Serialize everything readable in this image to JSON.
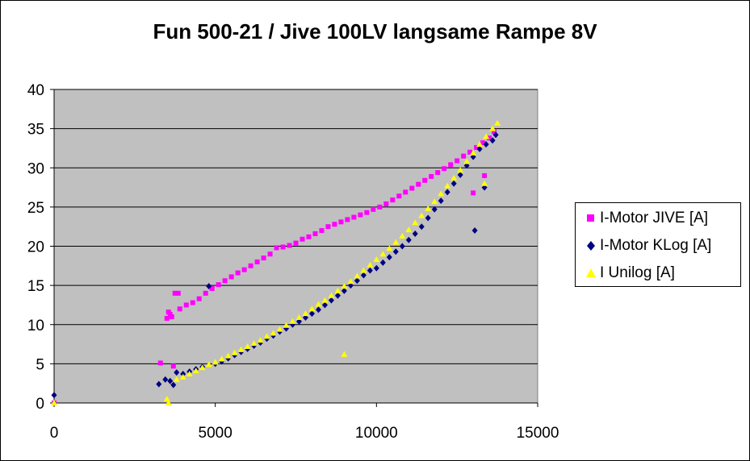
{
  "chart_data": {
    "type": "scatter",
    "title": "Fun 500-21 / Jive 100LV langsame Rampe 8V",
    "xlabel": "",
    "ylabel": "",
    "xlim": [
      0,
      15000
    ],
    "ylim": [
      0,
      40
    ],
    "x_ticks": [
      0,
      5000,
      10000,
      15000
    ],
    "y_ticks": [
      0,
      5,
      10,
      15,
      20,
      25,
      30,
      35,
      40
    ],
    "grid": "horizontal",
    "plot_background": "#c0c0c0",
    "legend_position": "right",
    "series": [
      {
        "name": "I-Motor JIVE [A]",
        "color": "#ff00ff",
        "marker": "square",
        "points": [
          [
            0,
            0
          ],
          [
            3300,
            5.1
          ],
          [
            3500,
            10.8
          ],
          [
            3550,
            11.6
          ],
          [
            3600,
            11.3
          ],
          [
            3650,
            11.0
          ],
          [
            3700,
            4.7
          ],
          [
            3750,
            14.0
          ],
          [
            3850,
            14.0
          ],
          [
            3900,
            12.0
          ],
          [
            4100,
            12.5
          ],
          [
            4300,
            12.8
          ],
          [
            4500,
            13.3
          ],
          [
            4700,
            14.0
          ],
          [
            4900,
            14.6
          ],
          [
            5100,
            15.1
          ],
          [
            5300,
            15.6
          ],
          [
            5500,
            16.1
          ],
          [
            5700,
            16.6
          ],
          [
            5900,
            17.0
          ],
          [
            6100,
            17.5
          ],
          [
            6300,
            18.0
          ],
          [
            6500,
            18.5
          ],
          [
            6700,
            19.0
          ],
          [
            6900,
            19.8
          ],
          [
            7100,
            19.9
          ],
          [
            7300,
            20.1
          ],
          [
            7500,
            20.4
          ],
          [
            7700,
            20.9
          ],
          [
            7900,
            21.2
          ],
          [
            8100,
            21.6
          ],
          [
            8300,
            22.0
          ],
          [
            8500,
            22.5
          ],
          [
            8700,
            22.8
          ],
          [
            8900,
            23.1
          ],
          [
            9100,
            23.4
          ],
          [
            9300,
            23.7
          ],
          [
            9500,
            24.0
          ],
          [
            9700,
            24.3
          ],
          [
            9900,
            24.7
          ],
          [
            10100,
            25.0
          ],
          [
            10300,
            25.4
          ],
          [
            10500,
            25.9
          ],
          [
            10700,
            26.4
          ],
          [
            10900,
            26.9
          ],
          [
            11100,
            27.4
          ],
          [
            11300,
            27.9
          ],
          [
            11500,
            28.4
          ],
          [
            11700,
            28.9
          ],
          [
            11900,
            29.4
          ],
          [
            12100,
            29.9
          ],
          [
            12300,
            30.4
          ],
          [
            12500,
            30.9
          ],
          [
            12700,
            31.5
          ],
          [
            12900,
            32.0
          ],
          [
            13100,
            32.6
          ],
          [
            13300,
            33.2
          ],
          [
            13500,
            33.8
          ],
          [
            13650,
            34.6
          ],
          [
            13000,
            26.8
          ],
          [
            13350,
            29.0
          ]
        ]
      },
      {
        "name": "I-Motor KLog [A]",
        "color": "#00007f",
        "marker": "diamond",
        "points": [
          [
            0,
            1.0
          ],
          [
            3250,
            2.4
          ],
          [
            3450,
            3.0
          ],
          [
            3600,
            2.8
          ],
          [
            3700,
            2.3
          ],
          [
            3800,
            3.9
          ],
          [
            4000,
            3.7
          ],
          [
            4200,
            4.0
          ],
          [
            4400,
            4.3
          ],
          [
            4600,
            4.6
          ],
          [
            4800,
            14.9
          ],
          [
            5000,
            5.0
          ],
          [
            5200,
            5.3
          ],
          [
            5400,
            5.7
          ],
          [
            5600,
            6.1
          ],
          [
            5800,
            6.5
          ],
          [
            6000,
            6.9
          ],
          [
            6200,
            7.3
          ],
          [
            6400,
            7.7
          ],
          [
            6600,
            8.2
          ],
          [
            6800,
            8.6
          ],
          [
            7000,
            9.1
          ],
          [
            7200,
            9.5
          ],
          [
            7400,
            10.0
          ],
          [
            7600,
            10.4
          ],
          [
            7800,
            10.9
          ],
          [
            8000,
            11.4
          ],
          [
            8200,
            11.9
          ],
          [
            8400,
            12.5
          ],
          [
            8600,
            13.1
          ],
          [
            8800,
            13.7
          ],
          [
            9000,
            14.3
          ],
          [
            9200,
            15.0
          ],
          [
            9400,
            15.6
          ],
          [
            9600,
            16.3
          ],
          [
            9800,
            16.9
          ],
          [
            10000,
            17.2
          ],
          [
            10200,
            17.9
          ],
          [
            10400,
            18.6
          ],
          [
            10600,
            19.3
          ],
          [
            10800,
            20.0
          ],
          [
            11000,
            20.8
          ],
          [
            11200,
            21.6
          ],
          [
            11400,
            22.5
          ],
          [
            11600,
            23.6
          ],
          [
            11800,
            24.7
          ],
          [
            12000,
            25.8
          ],
          [
            12200,
            26.9
          ],
          [
            12400,
            28.0
          ],
          [
            12600,
            29.1
          ],
          [
            12800,
            30.3
          ],
          [
            13000,
            31.4
          ],
          [
            13200,
            32.4
          ],
          [
            13400,
            33.0
          ],
          [
            13600,
            33.5
          ],
          [
            13700,
            34.2
          ],
          [
            13050,
            22.0
          ],
          [
            13350,
            27.5
          ]
        ]
      },
      {
        "name": "I Unilog [A]",
        "color": "#ffff00",
        "marker": "triangle",
        "points": [
          [
            0,
            0
          ],
          [
            3500,
            0.5
          ],
          [
            3550,
            0.0
          ],
          [
            3800,
            3.0
          ],
          [
            4000,
            3.3
          ],
          [
            4200,
            3.7
          ],
          [
            4400,
            4.1
          ],
          [
            4600,
            4.5
          ],
          [
            4800,
            4.9
          ],
          [
            5000,
            5.2
          ],
          [
            5200,
            5.6
          ],
          [
            5400,
            6.0
          ],
          [
            5600,
            6.4
          ],
          [
            5800,
            6.8
          ],
          [
            6000,
            7.2
          ],
          [
            6200,
            7.6
          ],
          [
            6400,
            8.0
          ],
          [
            6600,
            8.5
          ],
          [
            6800,
            8.9
          ],
          [
            7000,
            9.4
          ],
          [
            7200,
            9.9
          ],
          [
            7400,
            10.4
          ],
          [
            7600,
            10.9
          ],
          [
            7800,
            11.4
          ],
          [
            8000,
            12.0
          ],
          [
            8200,
            12.6
          ],
          [
            8400,
            13.1
          ],
          [
            8600,
            13.7
          ],
          [
            8800,
            14.3
          ],
          [
            9000,
            14.9
          ],
          [
            9200,
            15.5
          ],
          [
            9400,
            16.2
          ],
          [
            9600,
            16.9
          ],
          [
            9800,
            17.6
          ],
          [
            10000,
            18.3
          ],
          [
            10200,
            19.0
          ],
          [
            10400,
            19.7
          ],
          [
            10600,
            20.5
          ],
          [
            10800,
            21.3
          ],
          [
            11000,
            22.1
          ],
          [
            11200,
            23.0
          ],
          [
            11400,
            23.9
          ],
          [
            11600,
            24.8
          ],
          [
            11800,
            25.7
          ],
          [
            12000,
            26.7
          ],
          [
            12200,
            27.7
          ],
          [
            12400,
            28.7
          ],
          [
            12600,
            29.7
          ],
          [
            12800,
            30.8
          ],
          [
            13000,
            31.9
          ],
          [
            13200,
            33.0
          ],
          [
            13400,
            34.0
          ],
          [
            13600,
            35.0
          ],
          [
            13750,
            35.7
          ],
          [
            9000,
            6.2
          ],
          [
            13350,
            28.0
          ]
        ]
      }
    ]
  }
}
